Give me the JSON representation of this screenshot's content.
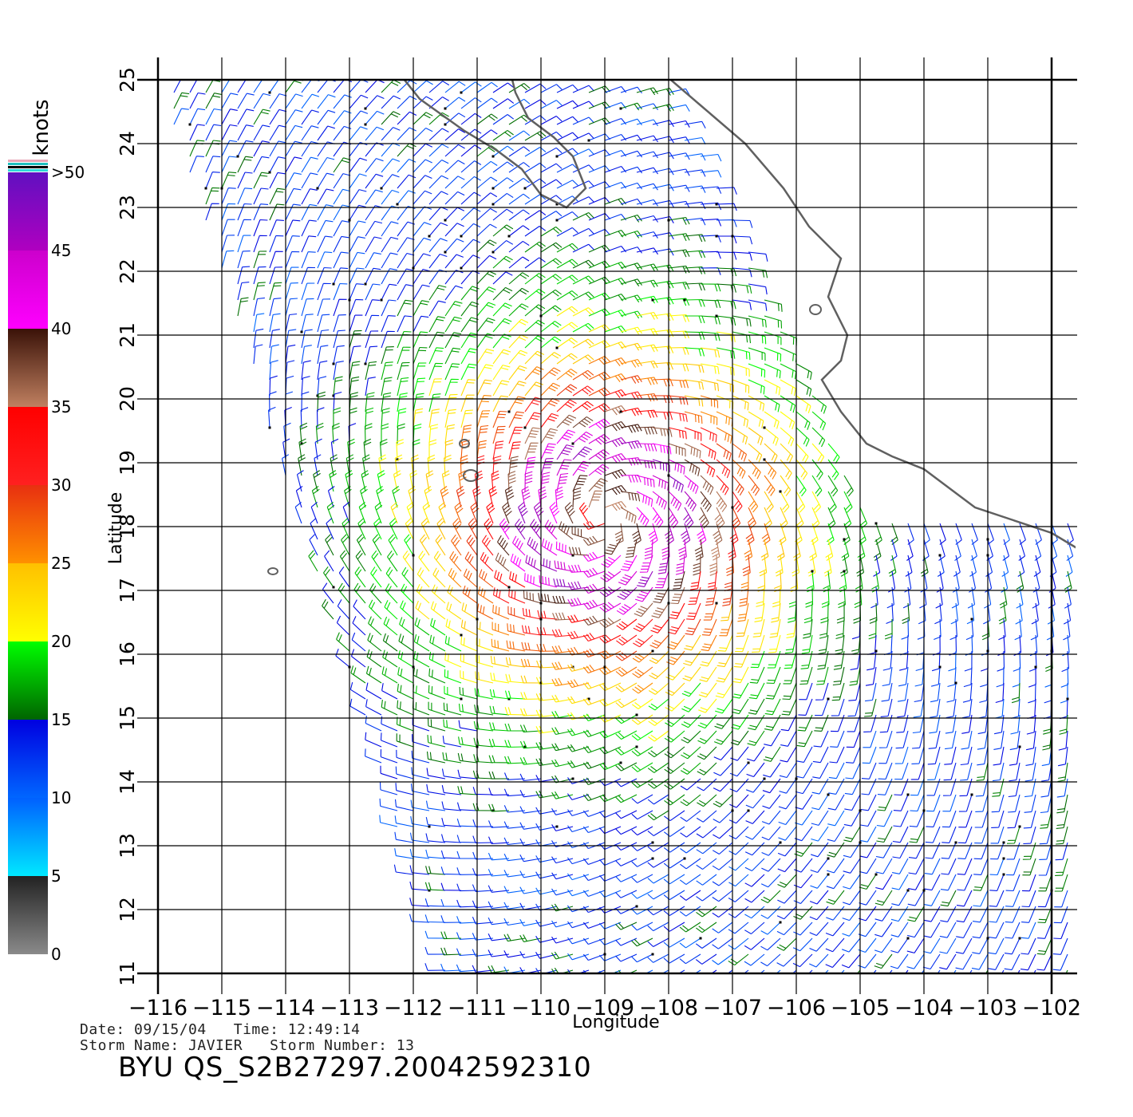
{
  "chart_data": {
    "type": "wind-barb-map",
    "xlabel": "Longitude",
    "ylabel": "Latitude",
    "xlim": [
      -116,
      -102
    ],
    "ylim": [
      11,
      25
    ],
    "x_ticks": [
      "−116",
      "−115",
      "−114",
      "−113",
      "−112",
      "−111",
      "−110",
      "−109",
      "−108",
      "−107",
      "−106",
      "−105",
      "−104",
      "−103",
      "−102"
    ],
    "y_ticks": [
      "11",
      "12",
      "13",
      "14",
      "15",
      "16",
      "17",
      "18",
      "19",
      "20",
      "21",
      "22",
      "23",
      "24",
      "25"
    ],
    "grid": true,
    "storm_center": {
      "lon": -109,
      "lat": 18.1
    },
    "colorbar": {
      "unit": "knots",
      "labels": [
        "0",
        "5",
        "10",
        "15",
        "20",
        "25",
        "30",
        "35",
        "40",
        "45",
        ">50"
      ],
      "bands": [
        {
          "from": 0,
          "to": 5,
          "colors": [
            "#8a8a8a",
            "#222222"
          ]
        },
        {
          "from": 5,
          "to": 10,
          "colors": [
            "#00e8ff",
            "#0060ff"
          ]
        },
        {
          "from": 10,
          "to": 15,
          "colors": [
            "#0066ff",
            "#0000e0"
          ]
        },
        {
          "from": 15,
          "to": 20,
          "colors": [
            "#006400",
            "#00ff00"
          ]
        },
        {
          "from": 20,
          "to": 25,
          "colors": [
            "#ffff00",
            "#ffc000"
          ]
        },
        {
          "from": 25,
          "to": 30,
          "colors": [
            "#ff9000",
            "#e83010"
          ]
        },
        {
          "from": 30,
          "to": 35,
          "colors": [
            "#ff2020",
            "#ff0000"
          ]
        },
        {
          "from": 35,
          "to": 40,
          "colors": [
            "#c08060",
            "#3a1208"
          ]
        },
        {
          "from": 40,
          "to": 45,
          "colors": [
            "#ff00ff",
            "#cc00cc"
          ]
        },
        {
          "from": 45,
          "to": 50,
          "colors": [
            "#b000c0",
            "#6010c0"
          ]
        }
      ]
    }
  },
  "meta": {
    "date_line": "Date: 09/15/04   Time: 12:49:14",
    "storm_line": "Storm Name: JAVIER   Storm Number: 13",
    "product_id": "BYU QS_S2B27297.20042592310"
  }
}
